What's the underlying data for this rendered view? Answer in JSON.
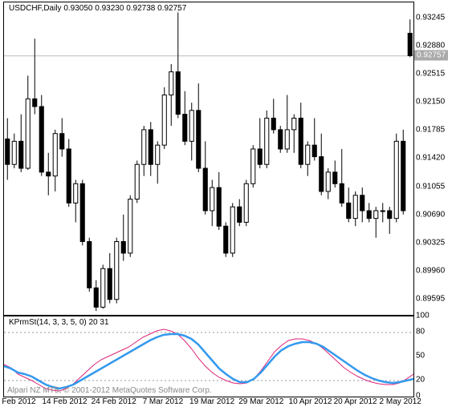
{
  "main": {
    "title": "USDCHF,Daily  0.93050 0.93230 0.92738 0.92757",
    "ymin": 0.894,
    "ymax": 0.9345,
    "yticks": [
      0.93245,
      0.9288,
      0.92515,
      0.9215,
      0.91785,
      0.9142,
      0.91055,
      0.9069,
      0.90325,
      0.8996,
      0.89595
    ],
    "current_price": 0.92757,
    "current_price_label": "0.92757",
    "hline_at": 0.92757,
    "grid_color": "#bbbbbb",
    "bg_color": "#ffffff",
    "candle_up_fill": "#ffffff",
    "candle_down_fill": "#000000",
    "candle_border": "#000000",
    "wick_color": "#000000",
    "candles": [
      {
        "o": 0.9168,
        "h": 0.9195,
        "l": 0.9115,
        "c": 0.9135
      },
      {
        "o": 0.9135,
        "h": 0.9175,
        "l": 0.913,
        "c": 0.9165
      },
      {
        "o": 0.9165,
        "h": 0.92,
        "l": 0.9125,
        "c": 0.913
      },
      {
        "o": 0.913,
        "h": 0.925,
        "l": 0.9128,
        "c": 0.922
      },
      {
        "o": 0.922,
        "h": 0.9298,
        "l": 0.92,
        "c": 0.921
      },
      {
        "o": 0.921,
        "h": 0.9225,
        "l": 0.912,
        "c": 0.9125
      },
      {
        "o": 0.9125,
        "h": 0.915,
        "l": 0.9095,
        "c": 0.912
      },
      {
        "o": 0.912,
        "h": 0.918,
        "l": 0.91,
        "c": 0.9175
      },
      {
        "o": 0.9175,
        "h": 0.9195,
        "l": 0.9145,
        "c": 0.9155
      },
      {
        "o": 0.9155,
        "h": 0.9168,
        "l": 0.908,
        "c": 0.9085
      },
      {
        "o": 0.9085,
        "h": 0.9115,
        "l": 0.906,
        "c": 0.911
      },
      {
        "o": 0.911,
        "h": 0.9115,
        "l": 0.903,
        "c": 0.9035
      },
      {
        "o": 0.9035,
        "h": 0.904,
        "l": 0.897,
        "c": 0.8975
      },
      {
        "o": 0.8975,
        "h": 0.8985,
        "l": 0.8945,
        "c": 0.895
      },
      {
        "o": 0.895,
        "h": 0.9005,
        "l": 0.8948,
        "c": 0.9
      },
      {
        "o": 0.9,
        "h": 0.902,
        "l": 0.8955,
        "c": 0.896
      },
      {
        "o": 0.896,
        "h": 0.904,
        "l": 0.8955,
        "c": 0.9035
      },
      {
        "o": 0.9035,
        "h": 0.907,
        "l": 0.901,
        "c": 0.902
      },
      {
        "o": 0.902,
        "h": 0.9095,
        "l": 0.9015,
        "c": 0.909
      },
      {
        "o": 0.909,
        "h": 0.914,
        "l": 0.9085,
        "c": 0.9135
      },
      {
        "o": 0.9135,
        "h": 0.9185,
        "l": 0.912,
        "c": 0.918
      },
      {
        "o": 0.918,
        "h": 0.919,
        "l": 0.912,
        "c": 0.9135
      },
      {
        "o": 0.9135,
        "h": 0.9165,
        "l": 0.911,
        "c": 0.916
      },
      {
        "o": 0.916,
        "h": 0.9235,
        "l": 0.9155,
        "c": 0.9225
      },
      {
        "o": 0.9225,
        "h": 0.9265,
        "l": 0.9185,
        "c": 0.9255
      },
      {
        "o": 0.9255,
        "h": 0.9335,
        "l": 0.9195,
        "c": 0.92
      },
      {
        "o": 0.92,
        "h": 0.923,
        "l": 0.916,
        "c": 0.9165
      },
      {
        "o": 0.9165,
        "h": 0.9215,
        "l": 0.914,
        "c": 0.9205
      },
      {
        "o": 0.9205,
        "h": 0.924,
        "l": 0.9125,
        "c": 0.913
      },
      {
        "o": 0.913,
        "h": 0.9165,
        "l": 0.907,
        "c": 0.9075
      },
      {
        "o": 0.9075,
        "h": 0.9115,
        "l": 0.9055,
        "c": 0.9105
      },
      {
        "o": 0.9105,
        "h": 0.9125,
        "l": 0.905,
        "c": 0.9055
      },
      {
        "o": 0.9055,
        "h": 0.906,
        "l": 0.9015,
        "c": 0.902
      },
      {
        "o": 0.902,
        "h": 0.9085,
        "l": 0.9015,
        "c": 0.908
      },
      {
        "o": 0.908,
        "h": 0.909,
        "l": 0.9055,
        "c": 0.906
      },
      {
        "o": 0.906,
        "h": 0.9115,
        "l": 0.9055,
        "c": 0.911
      },
      {
        "o": 0.911,
        "h": 0.916,
        "l": 0.9105,
        "c": 0.9155
      },
      {
        "o": 0.9155,
        "h": 0.9195,
        "l": 0.913,
        "c": 0.9135
      },
      {
        "o": 0.9135,
        "h": 0.9205,
        "l": 0.913,
        "c": 0.9195
      },
      {
        "o": 0.9195,
        "h": 0.922,
        "l": 0.9175,
        "c": 0.918
      },
      {
        "o": 0.918,
        "h": 0.9185,
        "l": 0.915,
        "c": 0.9155
      },
      {
        "o": 0.9155,
        "h": 0.9225,
        "l": 0.915,
        "c": 0.918
      },
      {
        "o": 0.918,
        "h": 0.92,
        "l": 0.915,
        "c": 0.9195
      },
      {
        "o": 0.9195,
        "h": 0.9215,
        "l": 0.913,
        "c": 0.9135
      },
      {
        "o": 0.9135,
        "h": 0.9165,
        "l": 0.912,
        "c": 0.916
      },
      {
        "o": 0.916,
        "h": 0.9195,
        "l": 0.914,
        "c": 0.9145
      },
      {
        "o": 0.9145,
        "h": 0.9175,
        "l": 0.9095,
        "c": 0.91
      },
      {
        "o": 0.91,
        "h": 0.913,
        "l": 0.909,
        "c": 0.9125
      },
      {
        "o": 0.9125,
        "h": 0.914,
        "l": 0.9105,
        "c": 0.911
      },
      {
        "o": 0.911,
        "h": 0.9155,
        "l": 0.908,
        "c": 0.9085
      },
      {
        "o": 0.9085,
        "h": 0.9105,
        "l": 0.906,
        "c": 0.9065
      },
      {
        "o": 0.9065,
        "h": 0.91,
        "l": 0.9055,
        "c": 0.9095
      },
      {
        "o": 0.9095,
        "h": 0.9105,
        "l": 0.906,
        "c": 0.9075
      },
      {
        "o": 0.9075,
        "h": 0.9085,
        "l": 0.906,
        "c": 0.9065
      },
      {
        "o": 0.9065,
        "h": 0.908,
        "l": 0.904,
        "c": 0.9075
      },
      {
        "o": 0.9075,
        "h": 0.9085,
        "l": 0.906,
        "c": 0.9075
      },
      {
        "o": 0.9075,
        "h": 0.908,
        "l": 0.9045,
        "c": 0.9065
      },
      {
        "o": 0.9065,
        "h": 0.9175,
        "l": 0.906,
        "c": 0.9165
      },
      {
        "o": 0.9165,
        "h": 0.918,
        "l": 0.907,
        "c": 0.9075
      },
      {
        "o": 0.9305,
        "h": 0.9323,
        "l": 0.9274,
        "c": 0.9276
      }
    ]
  },
  "sub": {
    "title": "KPrmSt(14, 3, 3, 5, 0) 20 31",
    "ymin": 0,
    "ymax": 100,
    "yticks": [
      100,
      80,
      50,
      20,
      0
    ],
    "hlines": [
      20,
      80
    ],
    "grid_color": "#999999",
    "line1_color": "#3399ee",
    "line1_width": 2.5,
    "line2_color": "#dd2277",
    "line2_width": 1,
    "line1": [
      38,
      35,
      30,
      28,
      25,
      20,
      15,
      12,
      10,
      12,
      15,
      20,
      25,
      30,
      35,
      40,
      45,
      50,
      55,
      60,
      65,
      70,
      74,
      77,
      78,
      78,
      76,
      72,
      65,
      55,
      45,
      35,
      28,
      22,
      18,
      18,
      22,
      30,
      40,
      50,
      58,
      63,
      66,
      68,
      68,
      66,
      62,
      56,
      50,
      44,
      38,
      32,
      27,
      23,
      20,
      18,
      17,
      18,
      20,
      22
    ],
    "line2": [
      40,
      36,
      28,
      24,
      20,
      15,
      10,
      8,
      7,
      10,
      16,
      24,
      32,
      40,
      46,
      50,
      54,
      58,
      62,
      68,
      74,
      78,
      82,
      84,
      82,
      78,
      70,
      60,
      48,
      38,
      30,
      24,
      20,
      17,
      16,
      17,
      22,
      32,
      44,
      56,
      64,
      70,
      72,
      72,
      70,
      66,
      60,
      52,
      44,
      36,
      30,
      25,
      21,
      18,
      16,
      15,
      15,
      17,
      22,
      28
    ]
  },
  "xaxis": {
    "labels": [
      "2 Feb 2012",
      "14 Feb 2012",
      "24 Feb 2012",
      "7 Mar 2012",
      "19 Mar 2012",
      "29 Mar 2012",
      "10 Apr 2012",
      "20 Apr 2012",
      "2 May 2012"
    ],
    "positions_pct": [
      3,
      15,
      27,
      39,
      51,
      63,
      75,
      86,
      97
    ]
  },
  "copyright": "Alpari NZ MT5, © 2001-2012 MetaQuotes Software Corp."
}
